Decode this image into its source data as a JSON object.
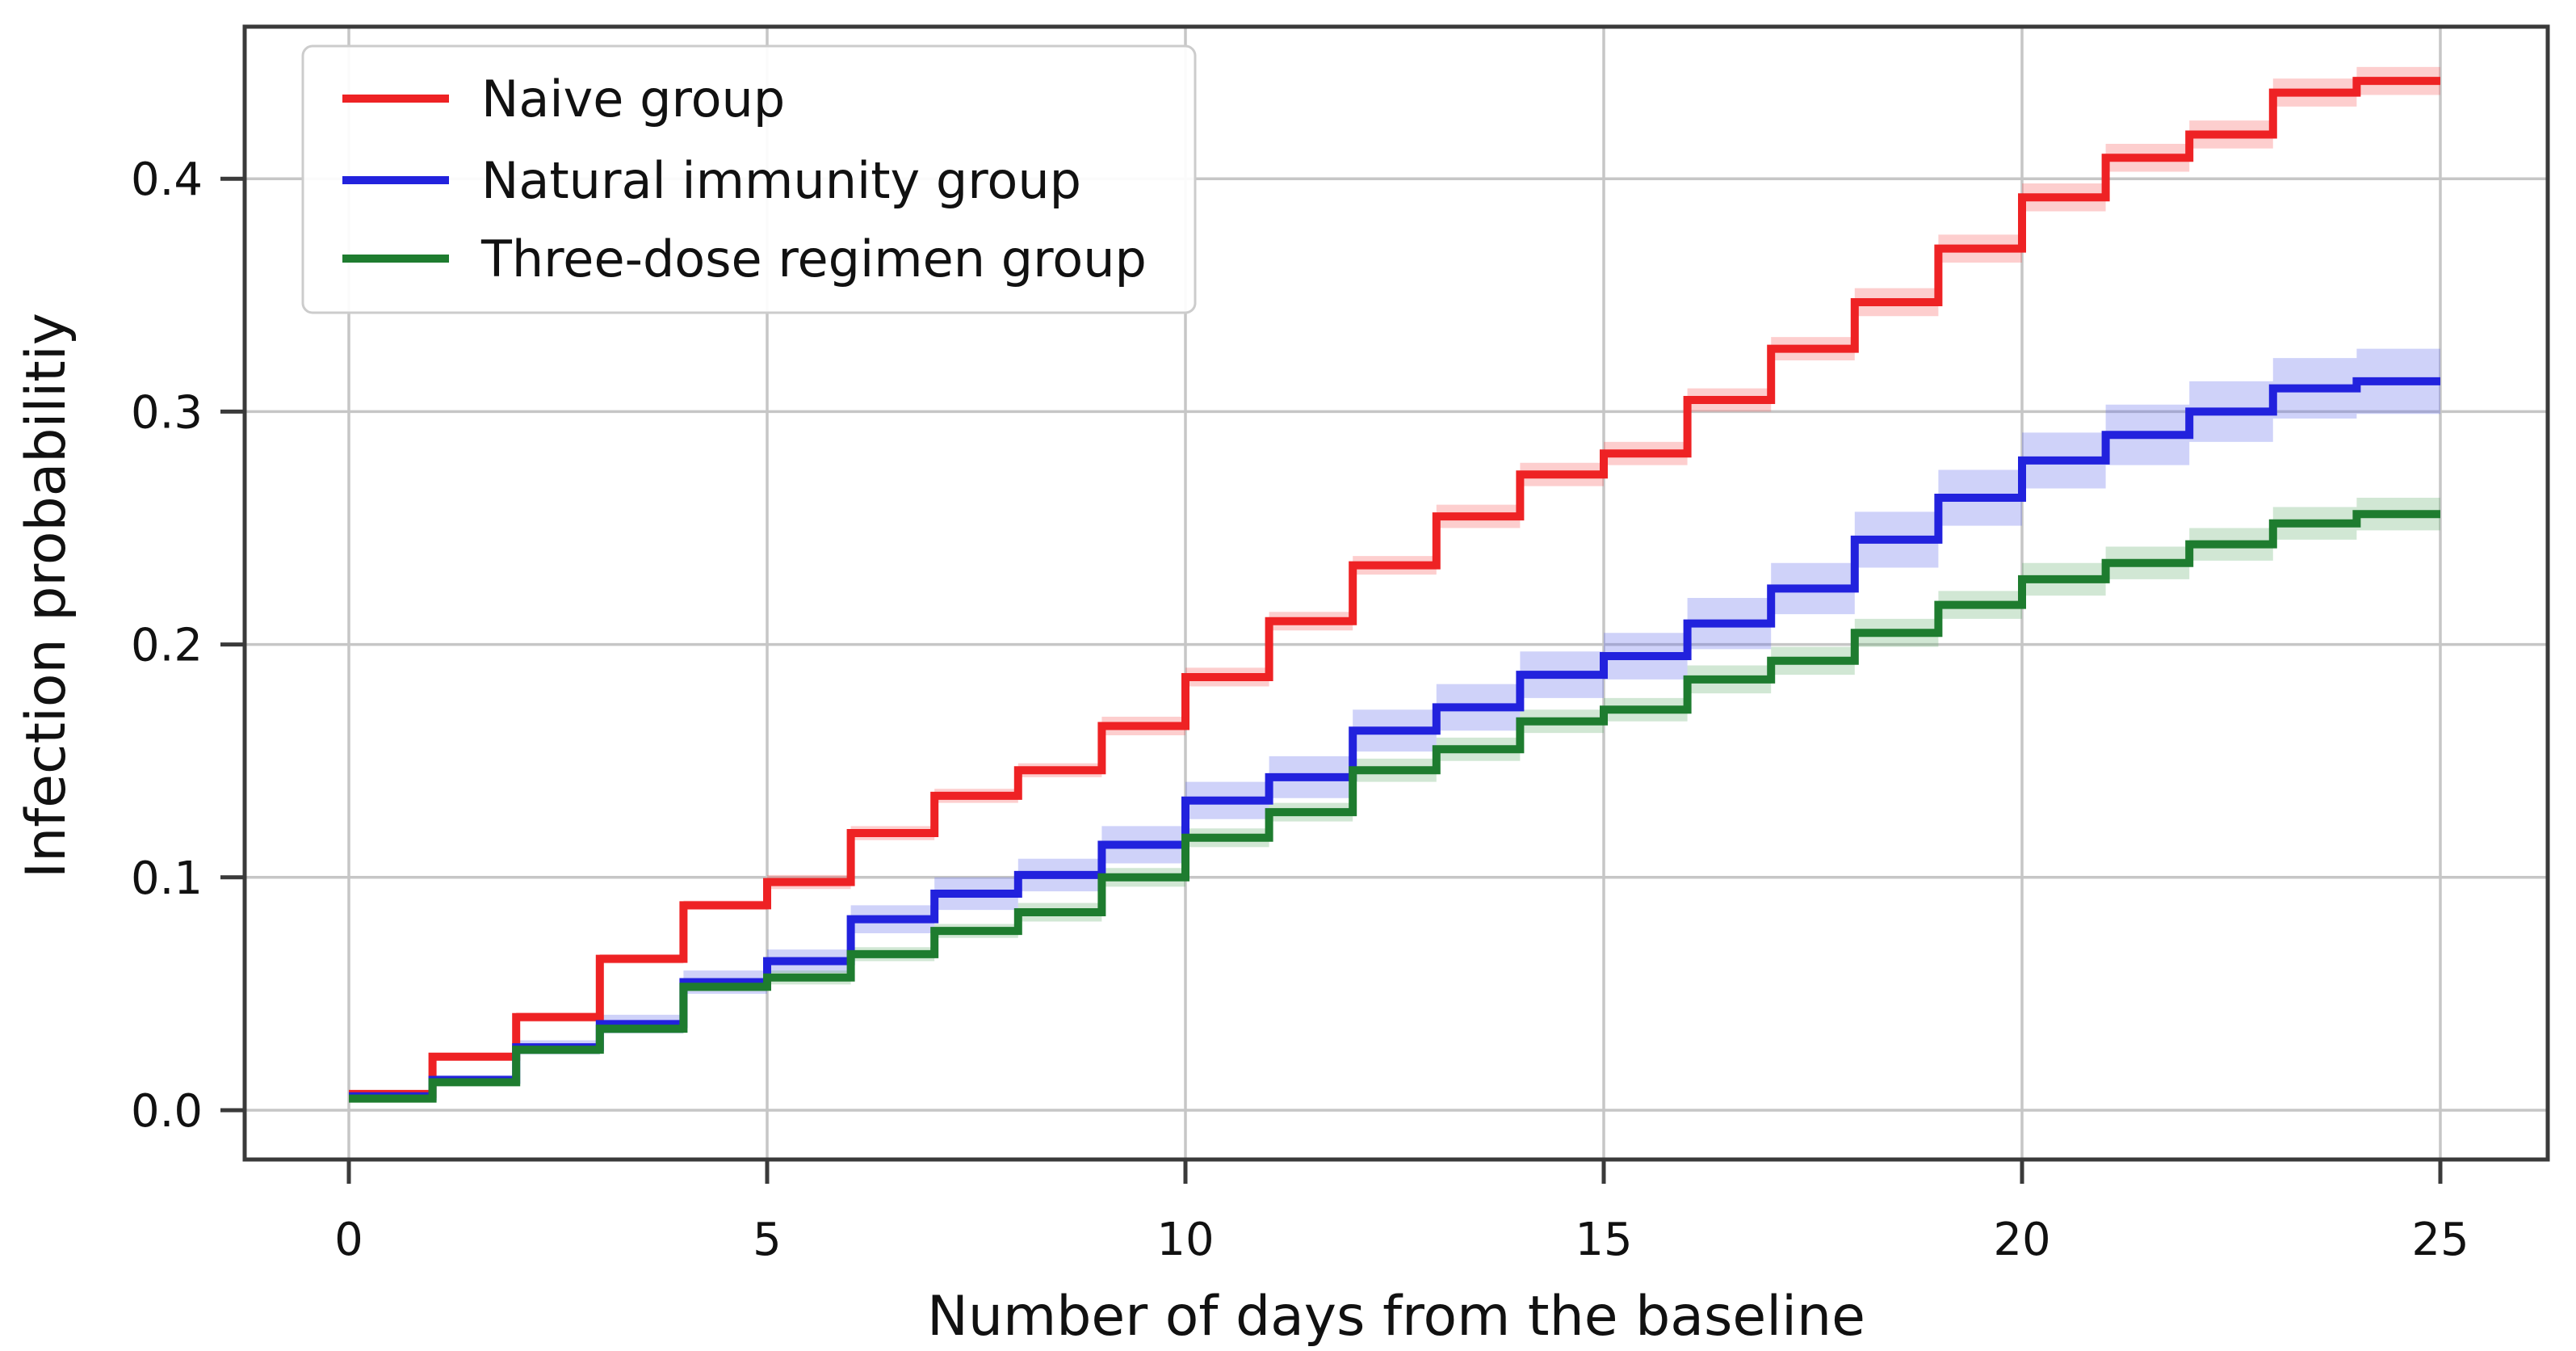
{
  "figure": {
    "background": "#ffffff"
  },
  "chart_data": {
    "type": "line",
    "variant": "step-post-with-confidence-bands",
    "title": "",
    "xlabel": "Number of days from the baseline",
    "ylabel": "Infection probabilitiy",
    "x_tick_labels": [
      "0",
      "5",
      "10",
      "15",
      "20",
      "25"
    ],
    "x_tick_values": [
      0,
      5,
      10,
      15,
      20,
      25
    ],
    "y_tick_labels": [
      "0.0",
      "0.1",
      "0.2",
      "0.3",
      "0.4"
    ],
    "y_tick_values": [
      0.0,
      0.1,
      0.2,
      0.3,
      0.4
    ],
    "xlim": [
      -1.25,
      26.28
    ],
    "ylim": [
      -0.0212,
      0.4653
    ],
    "grid": true,
    "grid_color": "#c6c6c6",
    "frame_color": "#3a3a3a",
    "text_color": "#111111",
    "legend_position": "upper-left",
    "days": [
      0,
      1,
      2,
      3,
      4,
      5,
      6,
      7,
      8,
      9,
      10,
      11,
      12,
      13,
      14,
      15,
      16,
      17,
      18,
      19,
      20,
      21,
      22,
      23,
      24
    ],
    "series": [
      {
        "name": "Naive group",
        "color": "#ee2224",
        "band_color": "rgba(248,80,80,0.28)",
        "values": [
          0.007,
          0.023,
          0.04,
          0.065,
          0.088,
          0.098,
          0.119,
          0.135,
          0.146,
          0.165,
          0.186,
          0.21,
          0.234,
          0.255,
          0.273,
          0.282,
          0.305,
          0.327,
          0.347,
          0.37,
          0.392,
          0.409,
          0.419,
          0.437,
          0.442
        ],
        "band_halfwidth": [
          0.001,
          0.001,
          0.002,
          0.002,
          0.002,
          0.003,
          0.003,
          0.003,
          0.003,
          0.004,
          0.004,
          0.004,
          0.004,
          0.005,
          0.005,
          0.005,
          0.005,
          0.005,
          0.006,
          0.006,
          0.006,
          0.006,
          0.006,
          0.006,
          0.006
        ]
      },
      {
        "name": "Natural immunity group",
        "color": "#2222dd",
        "band_color": "rgba(95,105,235,0.30)",
        "values": [
          0.006,
          0.013,
          0.027,
          0.037,
          0.055,
          0.064,
          0.082,
          0.093,
          0.101,
          0.114,
          0.133,
          0.143,
          0.163,
          0.173,
          0.187,
          0.195,
          0.209,
          0.224,
          0.245,
          0.263,
          0.279,
          0.29,
          0.3,
          0.31,
          0.313
        ],
        "band_halfwidth": [
          0.001,
          0.002,
          0.003,
          0.004,
          0.005,
          0.005,
          0.006,
          0.007,
          0.007,
          0.008,
          0.008,
          0.009,
          0.009,
          0.01,
          0.01,
          0.01,
          0.011,
          0.011,
          0.012,
          0.012,
          0.012,
          0.013,
          0.013,
          0.013,
          0.014
        ]
      },
      {
        "name": "Three-dose regimen group",
        "color": "#1e7c2f",
        "band_color": "rgba(90,170,100,0.28)",
        "values": [
          0.005,
          0.012,
          0.026,
          0.035,
          0.053,
          0.057,
          0.067,
          0.077,
          0.085,
          0.1,
          0.117,
          0.128,
          0.146,
          0.155,
          0.167,
          0.172,
          0.185,
          0.193,
          0.205,
          0.217,
          0.228,
          0.235,
          0.243,
          0.252,
          0.256
        ],
        "band_halfwidth": [
          0.001,
          0.001,
          0.002,
          0.002,
          0.002,
          0.003,
          0.003,
          0.003,
          0.004,
          0.004,
          0.004,
          0.004,
          0.005,
          0.005,
          0.005,
          0.005,
          0.006,
          0.006,
          0.006,
          0.006,
          0.007,
          0.007,
          0.007,
          0.007,
          0.007
        ]
      }
    ]
  }
}
